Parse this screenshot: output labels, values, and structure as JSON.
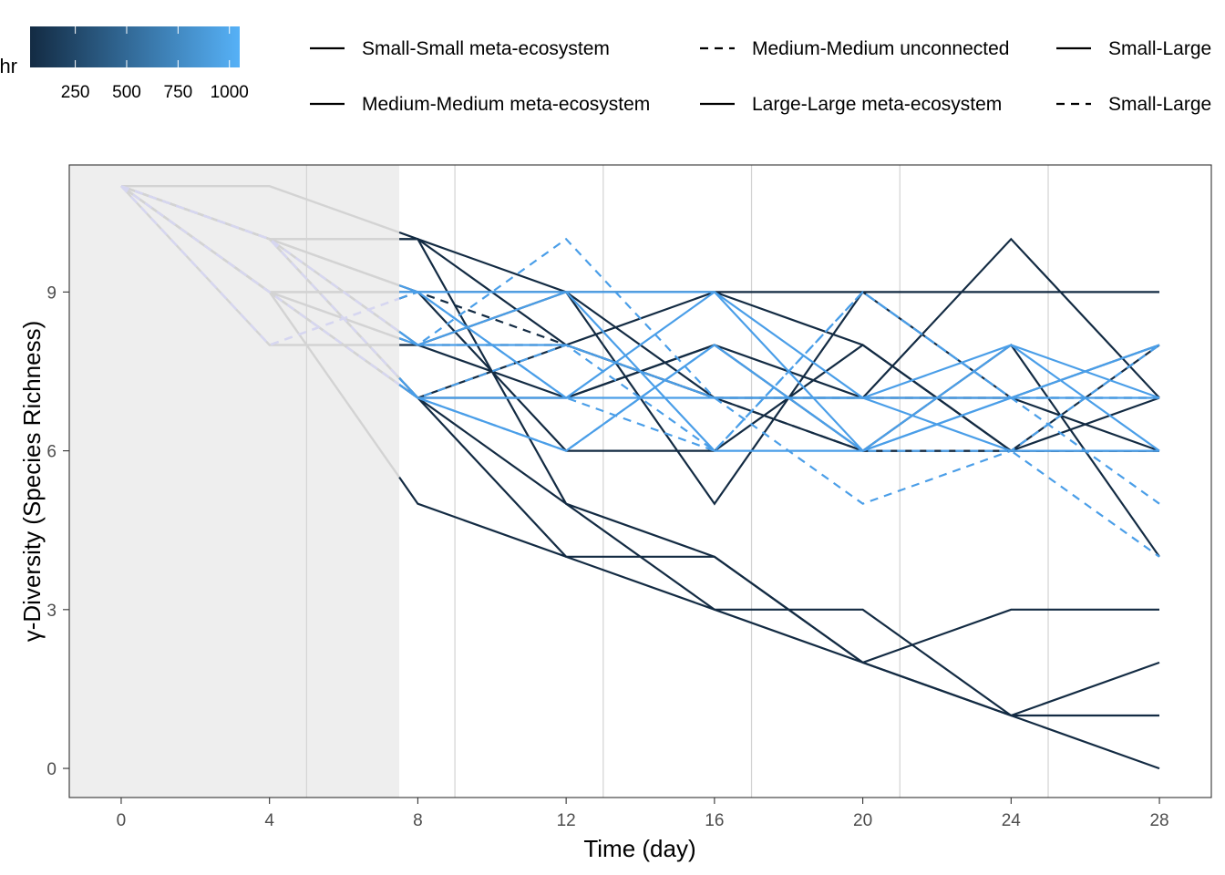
{
  "chart_data": {
    "type": "line",
    "xlabel": "Time (day)",
    "ylabel": "γ-Diversity (Species Richness)",
    "xlim": [
      -1.4,
      29.4
    ],
    "ylim": [
      -0.55,
      11.4
    ],
    "x_ticks": [
      0,
      4,
      8,
      12,
      16,
      20,
      24,
      28
    ],
    "y_ticks": [
      0,
      3,
      6,
      9
    ],
    "grid_vertical_days": [
      5,
      9,
      13,
      17,
      21,
      25
    ],
    "grid_color": "#d3d3d3",
    "shaded_region": {
      "from_day": -1.4,
      "to_day": 7.5,
      "color": "#eeeeee"
    },
    "colorbar": {
      "title_fragment": "hr",
      "ticks": [
        250,
        500,
        750,
        1000
      ],
      "range": [
        30,
        1050
      ],
      "color_low": "#132b43",
      "color_high": "#56b1f7"
    },
    "legend_entries": [
      {
        "label": "Small-Small meta-ecosystem",
        "dash": "solid"
      },
      {
        "label": "Medium-Medium unconnected",
        "dash": "dashed"
      },
      {
        "label": "Small-Large",
        "dash": "solid"
      },
      {
        "label": "Medium-Medium meta-ecosystem",
        "dash": "solid"
      },
      {
        "label": "Large-Large meta-ecosystem",
        "dash": "solid"
      },
      {
        "label": "Small-Large",
        "dash": "dashed"
      }
    ],
    "colors": {
      "dark": "#132b43",
      "light": "#4a9ee8",
      "pre": "#d3d3d3",
      "pre_dashed": "#d6d6f0"
    },
    "series": [
      {
        "style": "dark",
        "dash": false,
        "points": [
          [
            0,
            11
          ],
          [
            4,
            11
          ],
          [
            8,
            10
          ],
          [
            12,
            9
          ],
          [
            16,
            9
          ],
          [
            20,
            9
          ],
          [
            24,
            9
          ],
          [
            28,
            9
          ]
        ]
      },
      {
        "style": "dark",
        "dash": false,
        "points": [
          [
            0,
            11
          ],
          [
            4,
            10
          ],
          [
            8,
            10
          ],
          [
            12,
            8
          ],
          [
            16,
            7
          ],
          [
            20,
            6
          ],
          [
            24,
            6
          ],
          [
            28,
            7
          ]
        ]
      },
      {
        "style": "dark",
        "dash": false,
        "points": [
          [
            0,
            11
          ],
          [
            4,
            10
          ],
          [
            8,
            9
          ],
          [
            12,
            9
          ],
          [
            16,
            5
          ],
          [
            20,
            9
          ],
          [
            24,
            7
          ],
          [
            28,
            8
          ]
        ]
      },
      {
        "style": "dark",
        "dash": false,
        "points": [
          [
            0,
            11
          ],
          [
            4,
            9
          ],
          [
            8,
            9
          ],
          [
            12,
            6
          ],
          [
            16,
            6
          ],
          [
            20,
            8
          ],
          [
            24,
            6
          ],
          [
            28,
            8
          ]
        ]
      },
      {
        "style": "dark",
        "dash": false,
        "points": [
          [
            0,
            11
          ],
          [
            4,
            8
          ],
          [
            8,
            8
          ],
          [
            12,
            9
          ],
          [
            16,
            7
          ],
          [
            20,
            7
          ],
          [
            24,
            10
          ],
          [
            28,
            7
          ]
        ]
      },
      {
        "style": "dark",
        "dash": false,
        "points": [
          [
            0,
            11
          ],
          [
            4,
            10
          ],
          [
            8,
            8
          ],
          [
            12,
            7
          ],
          [
            16,
            8
          ],
          [
            20,
            6
          ],
          [
            24,
            8
          ],
          [
            28,
            4
          ]
        ]
      },
      {
        "style": "dark",
        "dash": false,
        "points": [
          [
            0,
            11
          ],
          [
            4,
            9
          ],
          [
            8,
            7
          ],
          [
            12,
            8
          ],
          [
            16,
            9
          ],
          [
            20,
            8
          ],
          [
            24,
            6
          ],
          [
            28,
            6
          ]
        ]
      },
      {
        "style": "dark",
        "dash": false,
        "points": [
          [
            0,
            11
          ],
          [
            4,
            10
          ],
          [
            8,
            7
          ],
          [
            12,
            7
          ],
          [
            16,
            8
          ],
          [
            20,
            7
          ],
          [
            24,
            7
          ],
          [
            28,
            6
          ]
        ]
      },
      {
        "style": "dark",
        "dash": false,
        "points": [
          [
            0,
            11
          ],
          [
            4,
            10
          ],
          [
            8,
            10
          ],
          [
            12,
            5
          ],
          [
            16,
            3
          ],
          [
            20,
            3
          ],
          [
            24,
            1
          ],
          [
            28,
            0
          ]
        ]
      },
      {
        "style": "dark",
        "dash": false,
        "points": [
          [
            0,
            11
          ],
          [
            4,
            9
          ],
          [
            8,
            5
          ],
          [
            12,
            4
          ],
          [
            16,
            4
          ],
          [
            20,
            2
          ],
          [
            24,
            3
          ],
          [
            28,
            3
          ]
        ]
      },
      {
        "style": "dark",
        "dash": false,
        "points": [
          [
            0,
            11
          ],
          [
            4,
            10
          ],
          [
            8,
            7
          ],
          [
            12,
            4
          ],
          [
            16,
            3
          ],
          [
            20,
            2
          ],
          [
            24,
            1
          ],
          [
            28,
            2
          ]
        ]
      },
      {
        "style": "dark",
        "dash": false,
        "points": [
          [
            0,
            11
          ],
          [
            4,
            9
          ],
          [
            8,
            7
          ],
          [
            12,
            5
          ],
          [
            16,
            4
          ],
          [
            20,
            2
          ],
          [
            24,
            1
          ],
          [
            28,
            1
          ]
        ]
      },
      {
        "style": "dark",
        "dash": true,
        "points": [
          [
            0,
            11
          ],
          [
            4,
            8
          ],
          [
            8,
            9
          ],
          [
            12,
            8
          ],
          [
            16,
            7
          ],
          [
            20,
            7
          ],
          [
            24,
            7
          ],
          [
            28,
            7
          ]
        ]
      },
      {
        "style": "dark",
        "dash": true,
        "points": [
          [
            0,
            11
          ],
          [
            4,
            9
          ],
          [
            8,
            8
          ],
          [
            12,
            8
          ],
          [
            16,
            7
          ],
          [
            20,
            6
          ],
          [
            24,
            6
          ],
          [
            28,
            6
          ]
        ]
      },
      {
        "style": "light",
        "dash": false,
        "points": [
          [
            0,
            11
          ],
          [
            4,
            10
          ],
          [
            8,
            9
          ],
          [
            12,
            9
          ],
          [
            16,
            9
          ],
          [
            20,
            7
          ],
          [
            24,
            8
          ],
          [
            28,
            7
          ]
        ]
      },
      {
        "style": "light",
        "dash": false,
        "points": [
          [
            0,
            11
          ],
          [
            4,
            9
          ],
          [
            8,
            9
          ],
          [
            12,
            7
          ],
          [
            16,
            9
          ],
          [
            20,
            6
          ],
          [
            24,
            7
          ],
          [
            28,
            8
          ]
        ]
      },
      {
        "style": "light",
        "dash": false,
        "points": [
          [
            0,
            11
          ],
          [
            4,
            10
          ],
          [
            8,
            8
          ],
          [
            12,
            8
          ],
          [
            16,
            7
          ],
          [
            20,
            7
          ],
          [
            24,
            6
          ],
          [
            28,
            6
          ]
        ]
      },
      {
        "style": "light",
        "dash": false,
        "points": [
          [
            0,
            11
          ],
          [
            4,
            9
          ],
          [
            8,
            7
          ],
          [
            12,
            6
          ],
          [
            16,
            8
          ],
          [
            20,
            6
          ],
          [
            24,
            8
          ],
          [
            28,
            6
          ]
        ]
      },
      {
        "style": "light",
        "dash": false,
        "points": [
          [
            0,
            11
          ],
          [
            4,
            10
          ],
          [
            8,
            7
          ],
          [
            12,
            7
          ],
          [
            16,
            7
          ],
          [
            20,
            7
          ],
          [
            24,
            7
          ],
          [
            28,
            7
          ]
        ]
      },
      {
        "style": "light",
        "dash": false,
        "points": [
          [
            0,
            11
          ],
          [
            4,
            9
          ],
          [
            8,
            8
          ],
          [
            12,
            9
          ],
          [
            16,
            6
          ],
          [
            20,
            6
          ],
          [
            24,
            7
          ],
          [
            28,
            8
          ]
        ]
      },
      {
        "style": "light",
        "dash": true,
        "points": [
          [
            0,
            11
          ],
          [
            4,
            10
          ],
          [
            8,
            8
          ],
          [
            12,
            10
          ],
          [
            16,
            7
          ],
          [
            20,
            5
          ],
          [
            24,
            6
          ],
          [
            28,
            8
          ]
        ]
      },
      {
        "style": "light",
        "dash": true,
        "points": [
          [
            0,
            11
          ],
          [
            4,
            8
          ],
          [
            8,
            9
          ],
          [
            12,
            7
          ],
          [
            16,
            6
          ],
          [
            20,
            9
          ],
          [
            24,
            7
          ],
          [
            28,
            5
          ]
        ]
      },
      {
        "style": "light",
        "dash": true,
        "points": [
          [
            0,
            11
          ],
          [
            4,
            10
          ],
          [
            8,
            7
          ],
          [
            12,
            6
          ],
          [
            16,
            8
          ],
          [
            20,
            6
          ],
          [
            24,
            6
          ],
          [
            28,
            4
          ]
        ]
      },
      {
        "style": "light",
        "dash": true,
        "points": [
          [
            0,
            11
          ],
          [
            4,
            9
          ],
          [
            8,
            7
          ],
          [
            12,
            8
          ],
          [
            16,
            6
          ],
          [
            20,
            9
          ],
          [
            24,
            7
          ],
          [
            28,
            7
          ]
        ]
      }
    ]
  }
}
